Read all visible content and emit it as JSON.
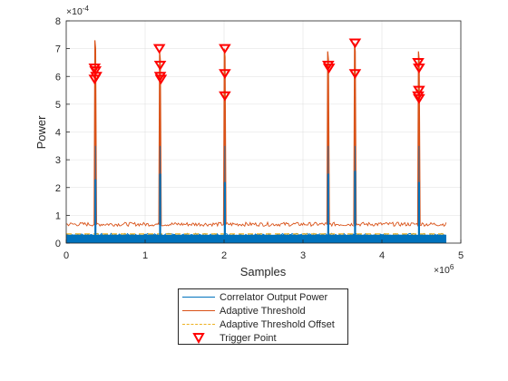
{
  "chart_data": {
    "type": "line",
    "xlabel": "Samples",
    "ylabel": "Power",
    "x_exponent_label": "×10",
    "x_exponent": "6",
    "y_exponent_label": "×10",
    "y_exponent": "-4",
    "xlim": [
      0,
      5
    ],
    "ylim": [
      0,
      8
    ],
    "x_ticks": [
      "0",
      "1",
      "2",
      "3",
      "4",
      "5"
    ],
    "y_ticks": [
      "0",
      "1",
      "2",
      "3",
      "4",
      "5",
      "6",
      "7",
      "8"
    ],
    "grid": true,
    "legend_position": "below",
    "noise_floor": {
      "correlator_output_level": 0.3,
      "adaptive_threshold_level": 0.68,
      "adaptive_threshold_offset_level": 0.33
    },
    "peaks": [
      {
        "x": 0.37,
        "correlator_peak": 2.3,
        "correlator_mid": 3.5,
        "threshold_peak": 7.3
      },
      {
        "x": 1.19,
        "correlator_peak": 2.5,
        "correlator_mid": 3.5,
        "threshold_peak": 6.9
      },
      {
        "x": 2.01,
        "correlator_peak": 2.2,
        "correlator_mid": 3.5,
        "threshold_peak": 7.0
      },
      {
        "x": 3.32,
        "correlator_peak": 2.5,
        "correlator_mid": 3.5,
        "threshold_peak": 6.9
      },
      {
        "x": 3.66,
        "correlator_peak": 2.6,
        "correlator_mid": 3.5,
        "threshold_peak": 7.2
      },
      {
        "x": 4.47,
        "correlator_peak": 2.2,
        "correlator_mid": 3.5,
        "threshold_peak": 6.9
      }
    ],
    "trigger_points": [
      {
        "x": 0.36,
        "y": 6.3
      },
      {
        "x": 0.37,
        "y": 6.2
      },
      {
        "x": 0.38,
        "y": 6.0
      },
      {
        "x": 0.36,
        "y": 5.9
      },
      {
        "x": 1.18,
        "y": 7.0
      },
      {
        "x": 1.19,
        "y": 6.4
      },
      {
        "x": 1.19,
        "y": 6.0
      },
      {
        "x": 1.2,
        "y": 5.9
      },
      {
        "x": 2.01,
        "y": 7.0
      },
      {
        "x": 2.01,
        "y": 6.1
      },
      {
        "x": 2.01,
        "y": 5.3
      },
      {
        "x": 3.32,
        "y": 6.4
      },
      {
        "x": 3.33,
        "y": 6.3
      },
      {
        "x": 3.66,
        "y": 7.2
      },
      {
        "x": 3.66,
        "y": 6.1
      },
      {
        "x": 4.46,
        "y": 6.5
      },
      {
        "x": 4.47,
        "y": 6.3
      },
      {
        "x": 4.47,
        "y": 5.5
      },
      {
        "x": 4.46,
        "y": 5.3
      },
      {
        "x": 4.47,
        "y": 5.2
      }
    ],
    "series": [
      {
        "name": "Correlator Output Power",
        "color": "#0072BD",
        "style": "solid"
      },
      {
        "name": "Adaptive Threshold",
        "color": "#D95319",
        "style": "solid"
      },
      {
        "name": "Adaptive Threshold Offset",
        "color": "#EDB120",
        "style": "dashed"
      },
      {
        "name": "Trigger Point",
        "color": "#FF0000",
        "style": "marker-triangle-down"
      }
    ]
  }
}
